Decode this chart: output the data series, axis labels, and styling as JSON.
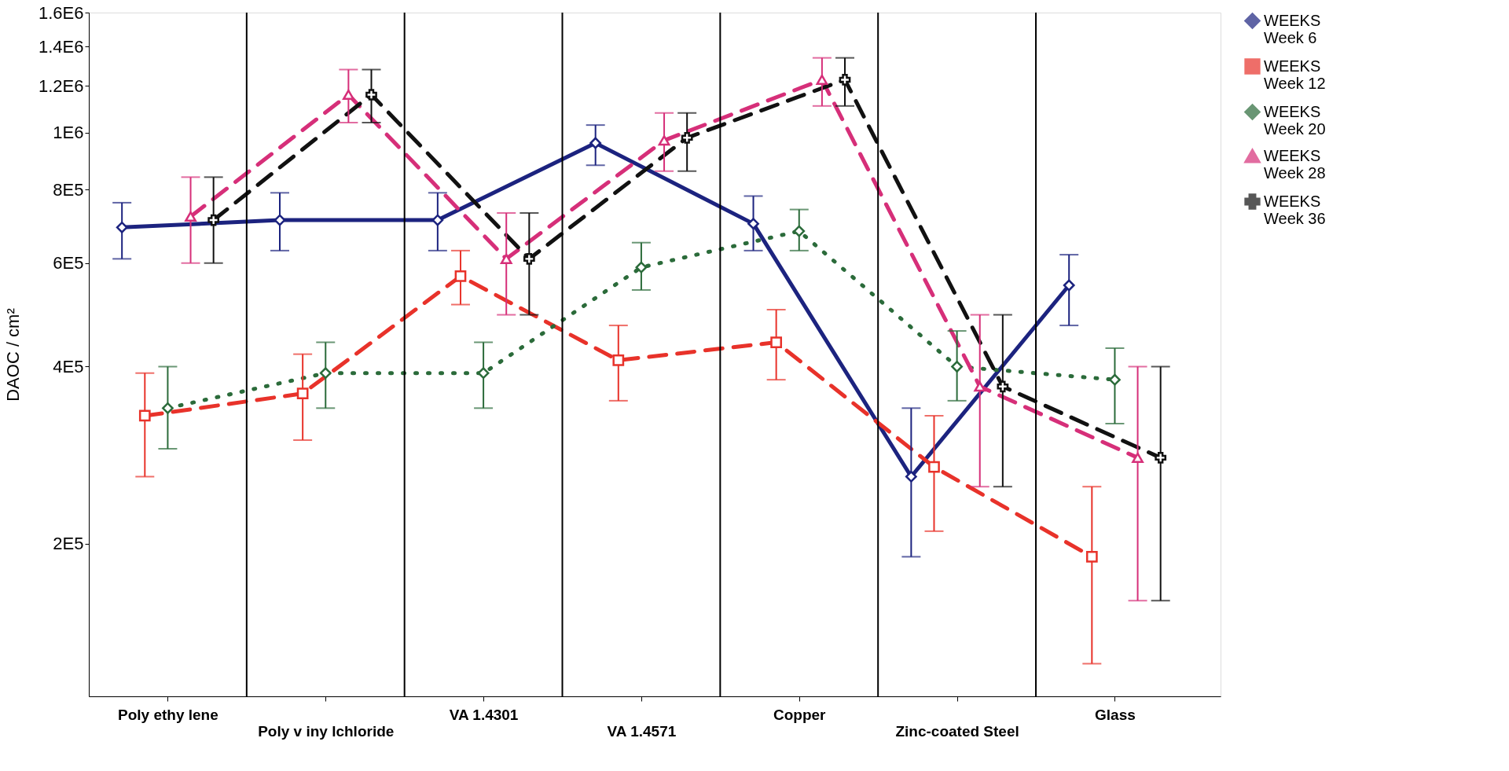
{
  "chart_data": {
    "type": "line",
    "ylabel": "DAOC / cm²",
    "categories": [
      "Poly ethy lene",
      "Poly v iny lchloride",
      "VA 1.4301",
      "VA 1.4571",
      "Copper",
      "Zinc-coated Steel",
      "Glass"
    ],
    "series": [
      {
        "name": "WEEKS\nWeek 6",
        "color": "#1c237f",
        "marker": "diamond",
        "line_style": "solid",
        "values": [
          690000,
          710000,
          710000,
          960000,
          700000,
          260000,
          550000
        ],
        "errors": [
          [
            610000,
            760000
          ],
          [
            630000,
            790000
          ],
          [
            630000,
            790000
          ],
          [
            880000,
            1030000
          ],
          [
            630000,
            780000
          ],
          [
            190000,
            340000
          ],
          [
            470000,
            620000
          ]
        ]
      },
      {
        "name": "WEEKS\nWeek 12",
        "color": "#e8322a",
        "marker": "square",
        "line_style": "dashed",
        "values": [
          330000,
          360000,
          570000,
          410000,
          440000,
          270000,
          190000
        ],
        "errors": [
          [
            260000,
            390000
          ],
          [
            300000,
            420000
          ],
          [
            510000,
            630000
          ],
          [
            350000,
            470000
          ],
          [
            380000,
            500000
          ],
          [
            210000,
            330000
          ],
          [
            125000,
            250000
          ]
        ]
      },
      {
        "name": "WEEKS\nWeek 20",
        "color": "#2b6b3a",
        "marker": "diamond",
        "line_style": "dotted",
        "values": [
          340000,
          390000,
          390000,
          590000,
          680000,
          400000,
          380000
        ],
        "errors": [
          [
            290000,
            400000
          ],
          [
            340000,
            440000
          ],
          [
            340000,
            440000
          ],
          [
            540000,
            650000
          ],
          [
            630000,
            740000
          ],
          [
            350000,
            460000
          ],
          [
            320000,
            430000
          ]
        ]
      },
      {
        "name": "WEEKS\nWeek 28",
        "color": "#d62f79",
        "marker": "triangle",
        "line_style": "dashed",
        "values": [
          720000,
          1160000,
          610000,
          970000,
          1230000,
          370000,
          280000
        ],
        "errors": [
          [
            600000,
            840000
          ],
          [
            1040000,
            1280000
          ],
          [
            490000,
            730000
          ],
          [
            860000,
            1080000
          ],
          [
            1110000,
            1340000
          ],
          [
            250000,
            490000
          ],
          [
            160000,
            400000
          ]
        ]
      },
      {
        "name": "WEEKS\nWeek 36",
        "color": "#111111",
        "marker": "cross",
        "line_style": "dashed",
        "values": [
          710000,
          1160000,
          610000,
          980000,
          1230000,
          370000,
          280000
        ],
        "errors": [
          [
            600000,
            840000
          ],
          [
            1040000,
            1280000
          ],
          [
            490000,
            730000
          ],
          [
            860000,
            1080000
          ],
          [
            1110000,
            1340000
          ],
          [
            250000,
            490000
          ],
          [
            160000,
            400000
          ]
        ]
      }
    ],
    "log": true,
    "ylim": [
      110000,
      1600000
    ],
    "yticks": [
      {
        "value": 200000,
        "label": "2E5"
      },
      {
        "value": 400000,
        "label": "4E5"
      },
      {
        "value": 600000,
        "label": "6E5"
      },
      {
        "value": 800000,
        "label": "8E5"
      },
      {
        "value": 1000000,
        "label": "1E6"
      },
      {
        "value": 1200000,
        "label": "1.2E6"
      },
      {
        "value": 1400000,
        "label": "1.4E6"
      },
      {
        "value": 1600000,
        "label": "1.6E6"
      }
    ],
    "grid": "x",
    "legend": "right"
  }
}
